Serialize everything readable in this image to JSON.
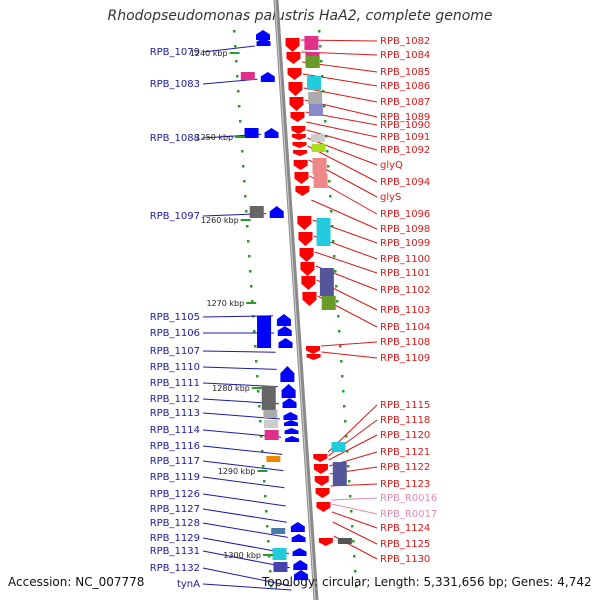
{
  "title": "Rhodopseudomonas palustris HaA2, complete genome",
  "accession": "Accession: NC_007778",
  "topology": "Topology: circular; Length: 5,331,656 bp; Genes: 4,742",
  "colors": {
    "forward": "#ff0000",
    "reverse": "#0000ff",
    "left_label": "#1a1aa6",
    "right_label": "#d81a1a",
    "rna_label": "#e08ab0",
    "backbone": "#888888"
  },
  "kbp_marks": [
    "1240 kbp",
    "1250 kbp",
    "1260 kbp",
    "1270 kbp",
    "1280 kbp",
    "1290 kbp",
    "1300 kbp"
  ],
  "left_genes": [
    "RPB_1079",
    "RPB_1083",
    "RPB_1088",
    "RPB_1097",
    "RPB_1105",
    "RPB_1106",
    "RPB_1107",
    "RPB_1110",
    "RPB_1111",
    "RPB_1112",
    "RPB_1113",
    "RPB_1114",
    "RPB_1116",
    "RPB_1117",
    "RPB_1119",
    "RPB_1126",
    "RPB_1127",
    "RPB_1128",
    "RPB_1129",
    "RPB_1131",
    "RPB_1132",
    "tynA"
  ],
  "right_genes": [
    "RPB_1082",
    "RPB_1084",
    "RPB_1085",
    "RPB_1086",
    "RPB_1087",
    "RPB_1089",
    "RPB_1090",
    "RPB_1091",
    "RPB_1092",
    "glyQ",
    "RPB_1094",
    "glyS",
    "RPB_1096",
    "RPB_1098",
    "RPB_1099",
    "RPB_1100",
    "RPB_1101",
    "RPB_1102",
    "RPB_1103",
    "RPB_1104",
    "RPB_1108",
    "RPB_1109",
    "RPB_1115",
    "RPB_1118",
    "RPB_1120",
    "RPB_1121",
    "RPB_1122",
    "RPB_1123",
    "RPB_R0016",
    "RPB_R0017",
    "RPB_1124",
    "RPB_1125",
    "RPB_1130"
  ]
}
